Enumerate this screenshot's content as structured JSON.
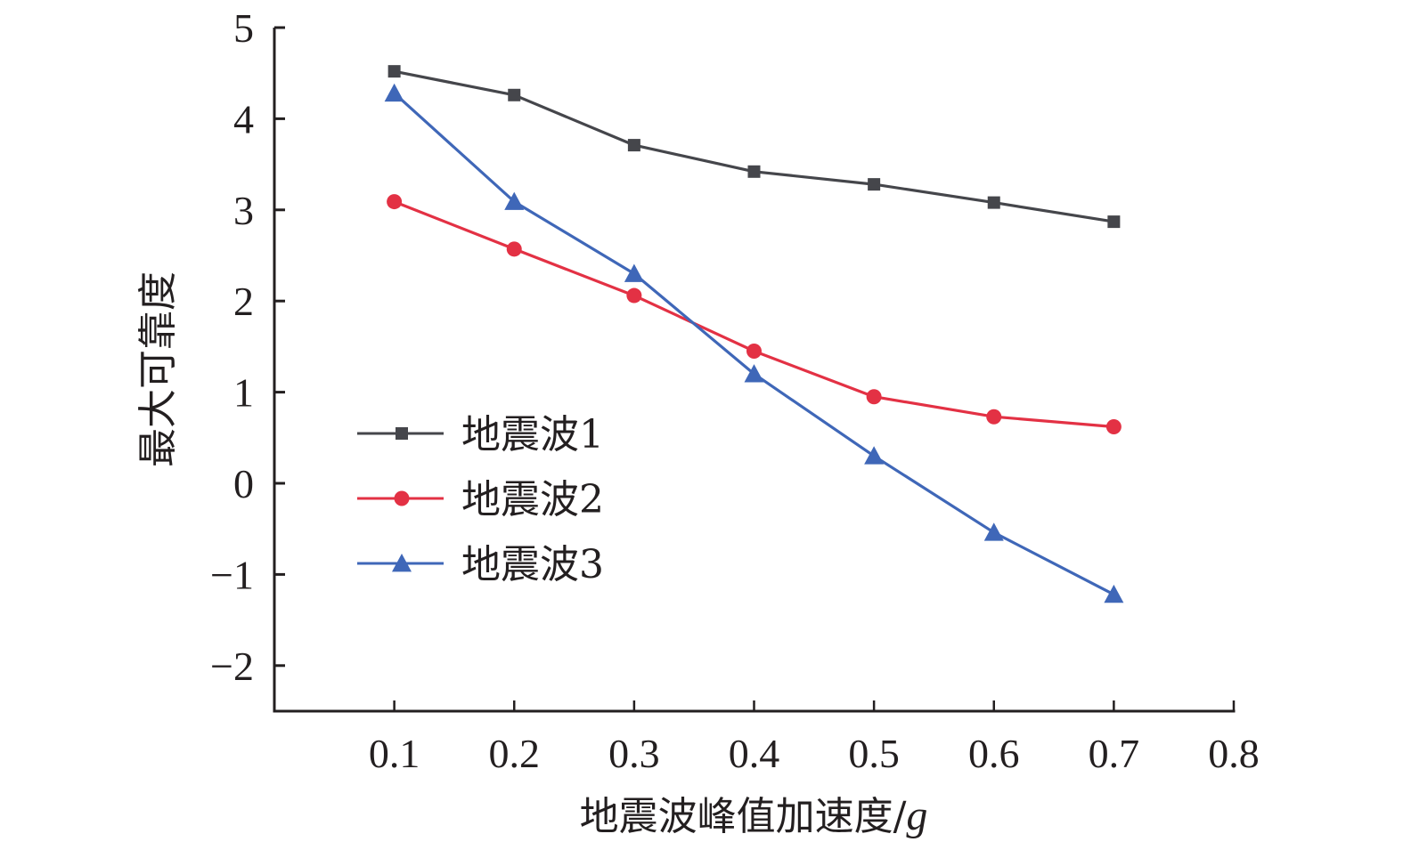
{
  "chart_data": {
    "type": "line",
    "title": "",
    "xlabel": "地震波峰值加速度/",
    "xlabel_italic_unit": "g",
    "ylabel": "最大可靠度",
    "xlim": [
      0,
      0.8
    ],
    "ylim": [
      -2.5,
      5
    ],
    "xticks": [
      0.1,
      0.2,
      0.3,
      0.4,
      0.5,
      0.6,
      0.7,
      0.8
    ],
    "xtick_labels": [
      "0.1",
      "0.2",
      "0.3",
      "0.4",
      "0.5",
      "0.6",
      "0.7",
      "0.8"
    ],
    "yticks": [
      5,
      4,
      3,
      2,
      1,
      0,
      -1,
      -2
    ],
    "ytick_labels": [
      "5",
      "4",
      "3",
      "2",
      "1",
      "0",
      "−1",
      "−2"
    ],
    "grid": false,
    "legend_position": "center-left",
    "x": [
      0.1,
      0.2,
      0.3,
      0.4,
      0.5,
      0.6,
      0.7
    ],
    "series": [
      {
        "name": "地震波1",
        "marker": "square",
        "color": "#45464b",
        "values": [
          4.52,
          4.26,
          3.71,
          3.42,
          3.28,
          3.08,
          2.87
        ]
      },
      {
        "name": "地震波2",
        "marker": "circle",
        "color": "#e33144",
        "values": [
          3.09,
          2.57,
          2.06,
          1.45,
          0.95,
          0.73,
          0.62
        ]
      },
      {
        "name": "地震波3",
        "marker": "triangle",
        "color": "#3f67b8",
        "values": [
          4.28,
          3.09,
          2.3,
          1.2,
          0.3,
          -0.54,
          -1.22
        ]
      }
    ]
  }
}
